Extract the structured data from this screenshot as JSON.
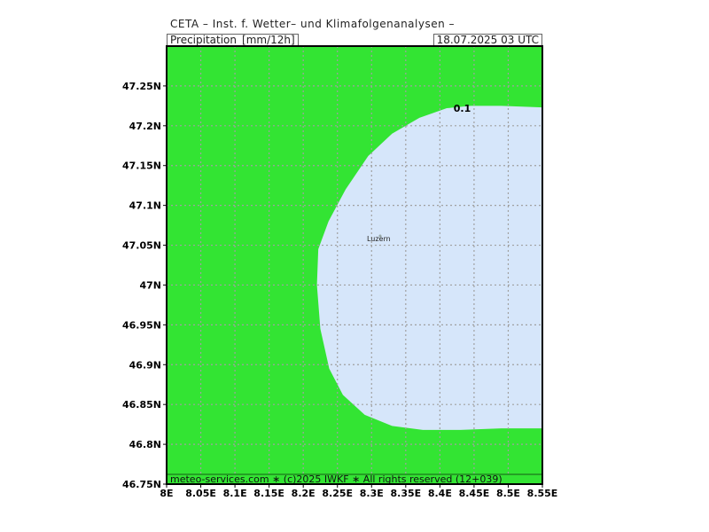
{
  "header": {
    "title": "CETA – Inst. f. Wetter– und Klimafolgenanalysen –",
    "parameter": "Precipitation_[mm/12h]",
    "valid_time": "18.07.2025  03 UTC"
  },
  "map": {
    "lon_range": [
      8.0,
      8.55
    ],
    "lat_range": [
      46.75,
      47.3
    ],
    "lon_ticks": [
      "8E",
      "8.05E",
      "8.1E",
      "8.15E",
      "8.2E",
      "8.25E",
      "8.3E",
      "8.35E",
      "8.4E",
      "8.45E",
      "8.5E",
      "8.55E"
    ],
    "lat_ticks": [
      "46.75N",
      "46.8N",
      "46.85N",
      "46.9N",
      "46.95N",
      "47N",
      "47.05N",
      "47.1N",
      "47.15N",
      "47.2N",
      "47.25N"
    ],
    "contour_label": "0.1",
    "city": "Luzern",
    "colors": {
      "precip_fill": "#33e433",
      "dry_fill": "#d6e6fa",
      "grid": "#a0a0a0",
      "footer_band": "#33e433"
    },
    "dry_region_outline": [
      [
        8.55,
        47.223
      ],
      [
        8.49,
        47.225
      ],
      [
        8.445,
        47.225
      ],
      [
        8.41,
        47.222
      ],
      [
        8.37,
        47.21
      ],
      [
        8.33,
        47.19
      ],
      [
        8.295,
        47.162
      ],
      [
        8.262,
        47.12
      ],
      [
        8.237,
        47.08
      ],
      [
        8.222,
        47.045
      ],
      [
        8.22,
        47.0
      ],
      [
        8.225,
        46.945
      ],
      [
        8.238,
        46.895
      ],
      [
        8.258,
        46.862
      ],
      [
        8.29,
        46.837
      ],
      [
        8.33,
        46.823
      ],
      [
        8.375,
        46.818
      ],
      [
        8.43,
        46.818
      ],
      [
        8.49,
        46.82
      ],
      [
        8.55,
        46.82
      ]
    ]
  },
  "footer": {
    "text": "meteo-services.com ∗ (c)2025 IWKF ∗ All rights reserved (12+039)"
  }
}
